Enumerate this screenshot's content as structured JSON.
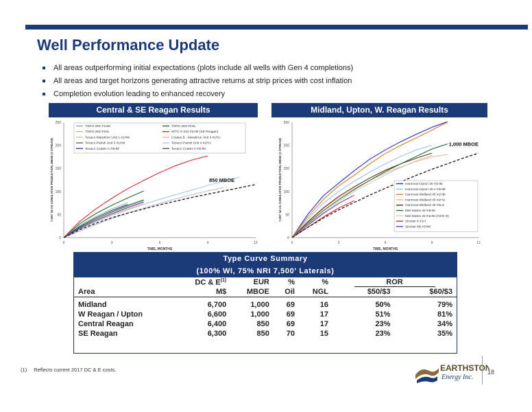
{
  "title": "Well Performance Update",
  "bullets": [
    "All areas outperforming initial expectations (plots include all wells with Gen 4 completions)",
    "All areas and target horizons generating attractive returns at strip prices with cost inflation",
    "Completion evolution leading to enhanced recovery"
  ],
  "colors": {
    "brand": "#1d3a78",
    "text": "#222222",
    "typecurve": "#222222"
  },
  "chart_data": [
    {
      "type": "line",
      "title": "Central & SE Reagan Results",
      "xlabel": "TIME, MONTHS",
      "ylabel": "7,500' lat-rm CUMULATIVE PRODUCTION, MBOE (3 STREAM)",
      "xlim": [
        0,
        12
      ],
      "ylim": [
        0,
        250
      ],
      "xticks": [
        0,
        3,
        6,
        9,
        12
      ],
      "yticks": [
        0,
        50,
        100,
        150,
        200,
        250
      ],
      "legend": "top",
      "annotation": "850 MBOE",
      "series": [
        {
          "name": "TSRH 28S #1HM",
          "color": "#7ca0c8",
          "x": [
            0,
            1,
            2,
            3,
            4,
            5
          ],
          "y": [
            0,
            22,
            40,
            55,
            68,
            80
          ]
        },
        {
          "name": "TSRH 28S #3HL",
          "color": "#1f6b2f",
          "x": [
            0,
            1,
            2,
            3,
            4,
            5
          ],
          "y": [
            0,
            30,
            52,
            70,
            86,
            101
          ]
        },
        {
          "name": "TSRH 28S #3HL",
          "color": "#a5c48a",
          "x": [
            0,
            1,
            2,
            3,
            4
          ],
          "y": [
            0,
            26,
            46,
            62,
            76
          ]
        },
        {
          "name": "WTG S-234 #1HM (SE Reagan)",
          "color": "#d62828",
          "x": [
            0,
            1,
            2,
            3,
            4,
            5,
            6,
            7,
            8,
            9
          ],
          "y": [
            0,
            35,
            62,
            85,
            106,
            124,
            141,
            156,
            168,
            177
          ]
        },
        {
          "name": "Texaco-Marathon Unit 1 #1HM",
          "color": "#c0c0c0",
          "x": [
            0,
            1,
            2,
            3,
            4,
            5,
            6,
            7,
            8,
            9,
            10
          ],
          "y": [
            0,
            14,
            28,
            41,
            53,
            64,
            74,
            84,
            93,
            101,
            108
          ]
        },
        {
          "name": "Coates B - Marathon Unit 3 #1HU",
          "color": "#f2b48a",
          "x": [
            0,
            1,
            2,
            3,
            4,
            5
          ],
          "y": [
            0,
            20,
            36,
            50,
            62,
            73
          ]
        },
        {
          "name": "Texaco-Parish Unit 3 #1HM",
          "color": "#4a7a3a",
          "x": [
            0,
            1,
            2,
            3,
            4,
            5
          ],
          "y": [
            0,
            22,
            40,
            56,
            70,
            82
          ]
        },
        {
          "name": "Texaco-Parish Unit 4 #1HU",
          "color": "#a6c8e6",
          "x": [
            0,
            1,
            2,
            3,
            4,
            5,
            6,
            7,
            8,
            9,
            10,
            11
          ],
          "y": [
            0,
            18,
            34,
            48,
            60,
            72,
            83,
            93,
            103,
            113,
            122,
            131
          ]
        },
        {
          "name": "Texaco Coates A #3HM",
          "color": "#2f3fa8",
          "x": [
            0,
            1,
            2,
            3,
            4
          ],
          "y": [
            0,
            24,
            43,
            59,
            72
          ]
        },
        {
          "name": "Texaco Coates A #4HM",
          "color": "#6a3d8f",
          "x": [
            0,
            1,
            2,
            3,
            4,
            5
          ],
          "y": [
            0,
            20,
            37,
            52,
            65,
            77
          ]
        },
        {
          "name": "850 MBOE",
          "dashed": true,
          "color": "#222222",
          "x": [
            0,
            1,
            2,
            3,
            4,
            5,
            6,
            7,
            8,
            9,
            10,
            11,
            12
          ],
          "y": [
            0,
            17,
            31,
            43,
            53,
            62,
            71,
            79,
            87,
            94,
            101,
            108,
            115
          ]
        }
      ]
    },
    {
      "type": "line",
      "title": "Midland, Upton, W. Reagan Results",
      "xlabel": "TIME, MONTHS",
      "ylabel": "7,500' lat-rm CUMULATIVE PRODUCTION, MBOE (3 STREAM)",
      "xlim": [
        0,
        12
      ],
      "ylim": [
        0,
        250
      ],
      "xticks": [
        0,
        3,
        6,
        9,
        12
      ],
      "yticks": [
        0,
        50,
        100,
        150,
        200,
        250
      ],
      "legend": "bottom-right",
      "annotation": "1,000 MBOE",
      "series": [
        {
          "name": "Hamman-Upton 30 #1HM",
          "color": "#1f2fb8",
          "x": [
            0,
            1,
            2,
            3,
            4,
            5,
            6,
            7,
            8,
            9,
            10
          ],
          "y": [
            0,
            50,
            90,
            118,
            145,
            170,
            190,
            208,
            224,
            239,
            251
          ]
        },
        {
          "name": "Hamman-Upton 30 A #2HM",
          "color": "#9bc2e6",
          "x": [
            0,
            1,
            2,
            3,
            4,
            5,
            6,
            7,
            8,
            9
          ],
          "y": [
            0,
            40,
            74,
            100,
            122,
            142,
            160,
            176,
            190,
            200
          ]
        },
        {
          "name": "Hamman-Midland 45 #1HM",
          "color": "#e07b24",
          "x": [
            0,
            1,
            2,
            3,
            4,
            5,
            6,
            7,
            8,
            9,
            10
          ],
          "y": [
            0,
            45,
            82,
            112,
            135,
            160,
            182,
            200,
            216,
            233,
            250
          ]
        },
        {
          "name": "Hamman-Midland 45 #2HU",
          "color": "#f2b48a",
          "x": [
            0,
            1,
            2,
            3,
            4,
            5,
            6,
            7,
            8,
            9,
            10
          ],
          "y": [
            0,
            32,
            62,
            86,
            106,
            124,
            140,
            153,
            165,
            175,
            180
          ]
        },
        {
          "name": "Hamman-Midland 45 #3LS",
          "color": "#5a2d0f",
          "x": [
            0,
            1,
            2,
            3,
            4,
            5,
            6,
            7,
            8,
            9
          ],
          "y": [
            0,
            34,
            64,
            89,
            110,
            129,
            146,
            160,
            172,
            183
          ]
        },
        {
          "name": "Mid-States 40 #3HM",
          "color": "#1f6b2f",
          "x": [
            0,
            1,
            2,
            3,
            4,
            5,
            6,
            7,
            8,
            9,
            10
          ],
          "y": [
            0,
            30,
            58,
            82,
            104,
            124,
            143,
            160,
            176,
            192,
            203
          ]
        },
        {
          "name": "Mid-States 40 #1HM (GEN III)",
          "color": "#c8c8c8",
          "x": [
            0,
            1,
            2,
            3,
            4,
            5,
            6,
            7,
            8,
            9
          ],
          "y": [
            0,
            28,
            54,
            78,
            100,
            118,
            136,
            152,
            166,
            178
          ]
        },
        {
          "name": "Sinclair 8 #1H",
          "color": "#d62828",
          "x": [
            0,
            1,
            2,
            3,
            4
          ],
          "y": [
            0,
            22,
            44,
            64,
            80
          ]
        },
        {
          "name": "Sinclair 8B #3HM",
          "color": "#7b3aa8",
          "x": [
            0,
            1,
            2,
            3,
            4
          ],
          "y": [
            0,
            26,
            52,
            74,
            92
          ]
        },
        {
          "name": "1,000 MBOE",
          "dashed": true,
          "color": "#222222",
          "x": [
            0,
            1,
            2,
            3,
            4,
            5,
            6,
            7,
            8,
            9,
            10,
            11,
            12
          ],
          "y": [
            0,
            22,
            42,
            60,
            76,
            92,
            107,
            121,
            135,
            148,
            160,
            172,
            183
          ]
        }
      ]
    }
  ],
  "table": {
    "title1": "Type Curve Summary",
    "title2": "(100% WI, 75% NRI 7,500' Laterals)",
    "header1": [
      "",
      "DC & E",
      "EUR",
      "%",
      "%",
      "ROR",
      ""
    ],
    "header1_sup": "(1)",
    "header2": [
      "Area",
      "M$",
      "MBOE",
      "Oil",
      "NGL",
      "$50/$3",
      "$60/$3"
    ],
    "rows": [
      [
        "Midland",
        "6,700",
        "1,000",
        "69",
        "16",
        "50%",
        "79%"
      ],
      [
        "W Reagan / Upton",
        "6,600",
        "1,000",
        "69",
        "17",
        "51%",
        "81%"
      ],
      [
        "Central Reagan",
        "6,400",
        "850",
        "69",
        "17",
        "23%",
        "34%"
      ],
      [
        "SE Reagan",
        "6,300",
        "850",
        "70",
        "15",
        "23%",
        "35%"
      ]
    ]
  },
  "footnote": {
    "marker": "(1)",
    "text": "Reflects current 2017 DC & E costs."
  },
  "logo": {
    "line1": "EARTHSTONE",
    "line2": "Energy Inc."
  },
  "page_number": "18"
}
